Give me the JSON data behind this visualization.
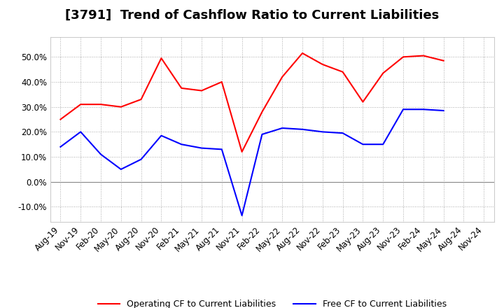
{
  "title": "[3791]  Trend of Cashflow Ratio to Current Liabilities",
  "x_labels": [
    "Aug-19",
    "Nov-19",
    "Feb-20",
    "May-20",
    "Aug-20",
    "Nov-20",
    "Feb-21",
    "May-21",
    "Aug-21",
    "Nov-21",
    "Feb-22",
    "May-22",
    "Aug-22",
    "Nov-22",
    "Feb-23",
    "May-23",
    "Aug-23",
    "Nov-23",
    "Feb-24",
    "May-24",
    "Aug-24",
    "Nov-24"
  ],
  "operating_cf": [
    25.0,
    31.0,
    31.0,
    30.0,
    33.0,
    49.5,
    37.5,
    36.5,
    40.0,
    12.0,
    28.0,
    42.0,
    51.5,
    47.0,
    44.0,
    32.0,
    43.5,
    50.0,
    50.5,
    48.5,
    null,
    null
  ],
  "free_cf": [
    14.0,
    20.0,
    11.0,
    5.0,
    9.0,
    18.5,
    15.0,
    13.5,
    13.0,
    -13.5,
    19.0,
    21.5,
    21.0,
    20.0,
    19.5,
    15.0,
    15.0,
    29.0,
    29.0,
    28.5,
    null,
    null
  ],
  "operating_color": "#ff0000",
  "free_color": "#0000ff",
  "ylim": [
    -16,
    58
  ],
  "yticks": [
    -10.0,
    0.0,
    10.0,
    20.0,
    30.0,
    40.0,
    50.0
  ],
  "background_color": "#ffffff",
  "grid_color": "#aaaaaa",
  "title_fontsize": 13,
  "tick_fontsize": 8.5,
  "legend_fontsize": 9
}
